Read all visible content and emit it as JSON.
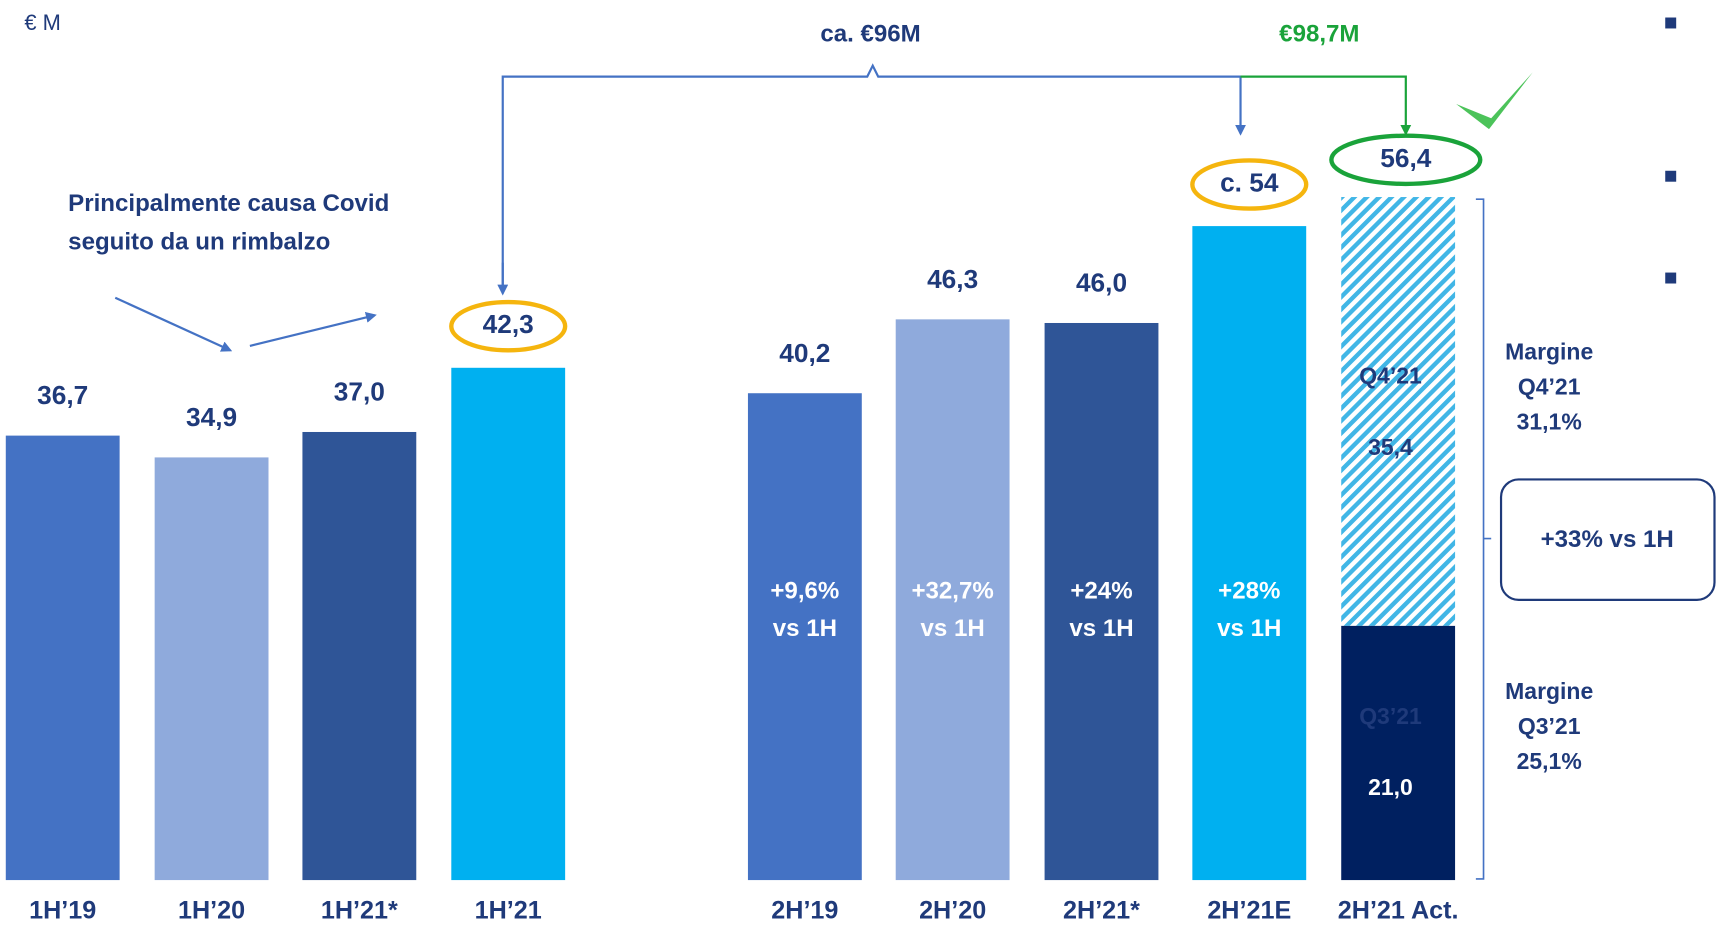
{
  "chart_data": {
    "type": "bar",
    "unit": "€ M",
    "categories": [
      "1H’19",
      "1H’20",
      "1H’21*",
      "1H’21",
      "2H’19",
      "2H’20",
      "2H’21*",
      "2H’21E",
      "2H’21 Act."
    ],
    "values": [
      36.7,
      34.9,
      37.0,
      42.3,
      40.2,
      46.3,
      46.0,
      54,
      56.4
    ],
    "value_labels": [
      "36,7",
      "34,9",
      "37,0",
      "42,3",
      "40,2",
      "46,3",
      "46,0",
      "c. 54",
      "56,4"
    ],
    "colors": [
      "#4472c4",
      "#8faadc",
      "#2f5597",
      "#00b0f0",
      "#4472c4",
      "#8faadc",
      "#2f5597",
      "#00b0f0",
      null
    ],
    "growth_labels": [
      null,
      null,
      null,
      null,
      [
        "+9,6%",
        "vs 1H"
      ],
      [
        "+32,7%",
        "vs 1H"
      ],
      [
        "+24%",
        "vs 1H"
      ],
      [
        "+28%",
        "vs 1H"
      ],
      null
    ],
    "stack": {
      "segments": [
        {
          "name": "Q3’21",
          "value": 21.0,
          "value_label": "21,0",
          "color": "#002060",
          "hatched": false,
          "margin_label": [
            "Margine",
            "Q3’21",
            "25,1%"
          ]
        },
        {
          "name": "Q4’21",
          "value": 35.4,
          "value_label": "35,4",
          "color": "#41b6e6",
          "hatched": true,
          "margin_label": [
            "Margine",
            "Q4’21",
            "31,1%"
          ]
        }
      ]
    },
    "annotations": {
      "covid_note": [
        "Principalmente causa Covid",
        "seguito da un rimbalzo"
      ],
      "estimate_total": "ca. €96M",
      "actual_total": "€98,7M",
      "growth_box": "+33% vs 1H"
    }
  }
}
